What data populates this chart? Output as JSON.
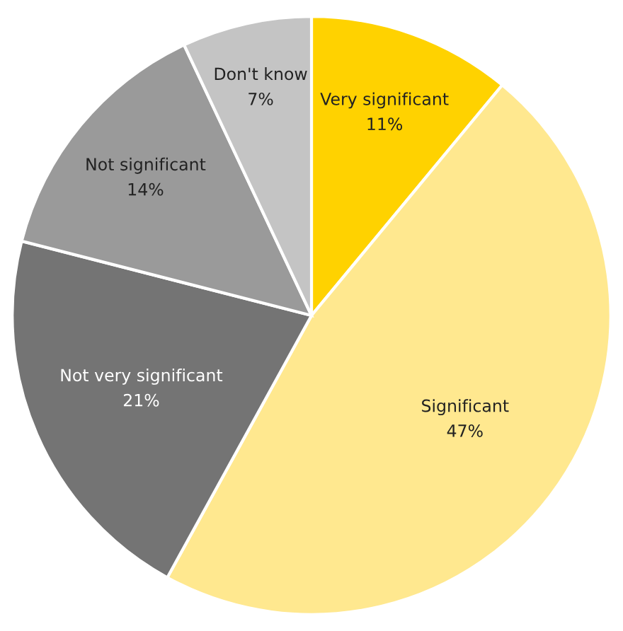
{
  "chart_data": {
    "type": "pie",
    "categories": [
      "Very significant",
      "Significant",
      "Not very significant",
      "Not significant",
      "Don't know"
    ],
    "values": [
      11,
      47,
      21,
      14,
      7
    ],
    "value_labels": [
      "11%",
      "47%",
      "21%",
      "14%",
      "7%"
    ],
    "colors": [
      "#ffd200",
      "#ffe88f",
      "#747474",
      "#9a9a9a",
      "#c4c4c4"
    ]
  }
}
